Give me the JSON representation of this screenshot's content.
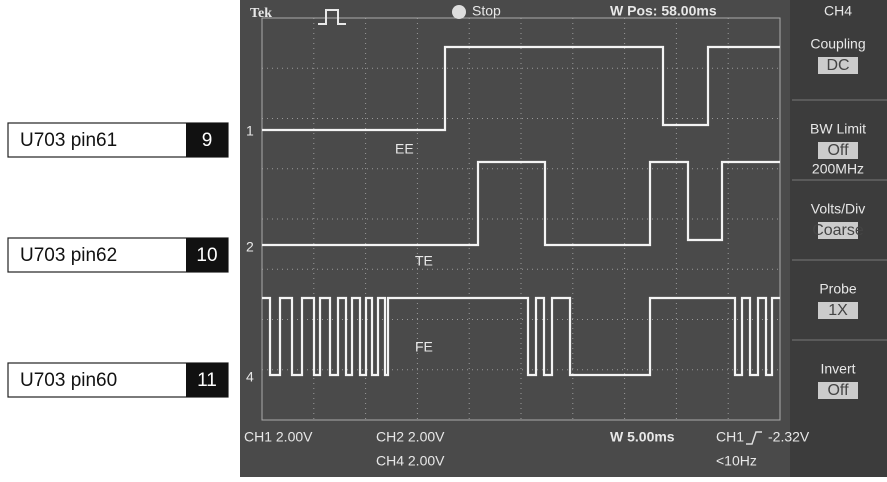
{
  "labels": [
    {
      "signal": "U703 pin61",
      "number": "9"
    },
    {
      "signal": "U703 pin62",
      "number": "10"
    },
    {
      "signal": "U703 pin60",
      "number": "11"
    }
  ],
  "scope": {
    "brand": "Tek",
    "status": "Stop",
    "w_pos": "W Pos: 58.00ms",
    "channel": "CH4",
    "menu": [
      {
        "title": "Coupling",
        "value": "DC"
      },
      {
        "title": "BW Limit",
        "value": "Off",
        "extra": "200MHz"
      },
      {
        "title": "Volts/Div",
        "value": "Coarse"
      },
      {
        "title": "Probe",
        "value": "1X"
      },
      {
        "title": "Invert",
        "value": "Off"
      }
    ],
    "traces": [
      {
        "marker": "1",
        "name": "EE"
      },
      {
        "marker": "2",
        "name": "TE"
      },
      {
        "marker": "4",
        "name": "FE"
      }
    ],
    "readout": {
      "ch1": "CH1 2.00V",
      "ch2": "CH2 2.00V",
      "ch4": "CH4 2.00V",
      "timebase": "W 5.00ms",
      "trigger_source": "CH1",
      "trigger_level": "-2.32V",
      "frequency": "<10Hz"
    }
  }
}
